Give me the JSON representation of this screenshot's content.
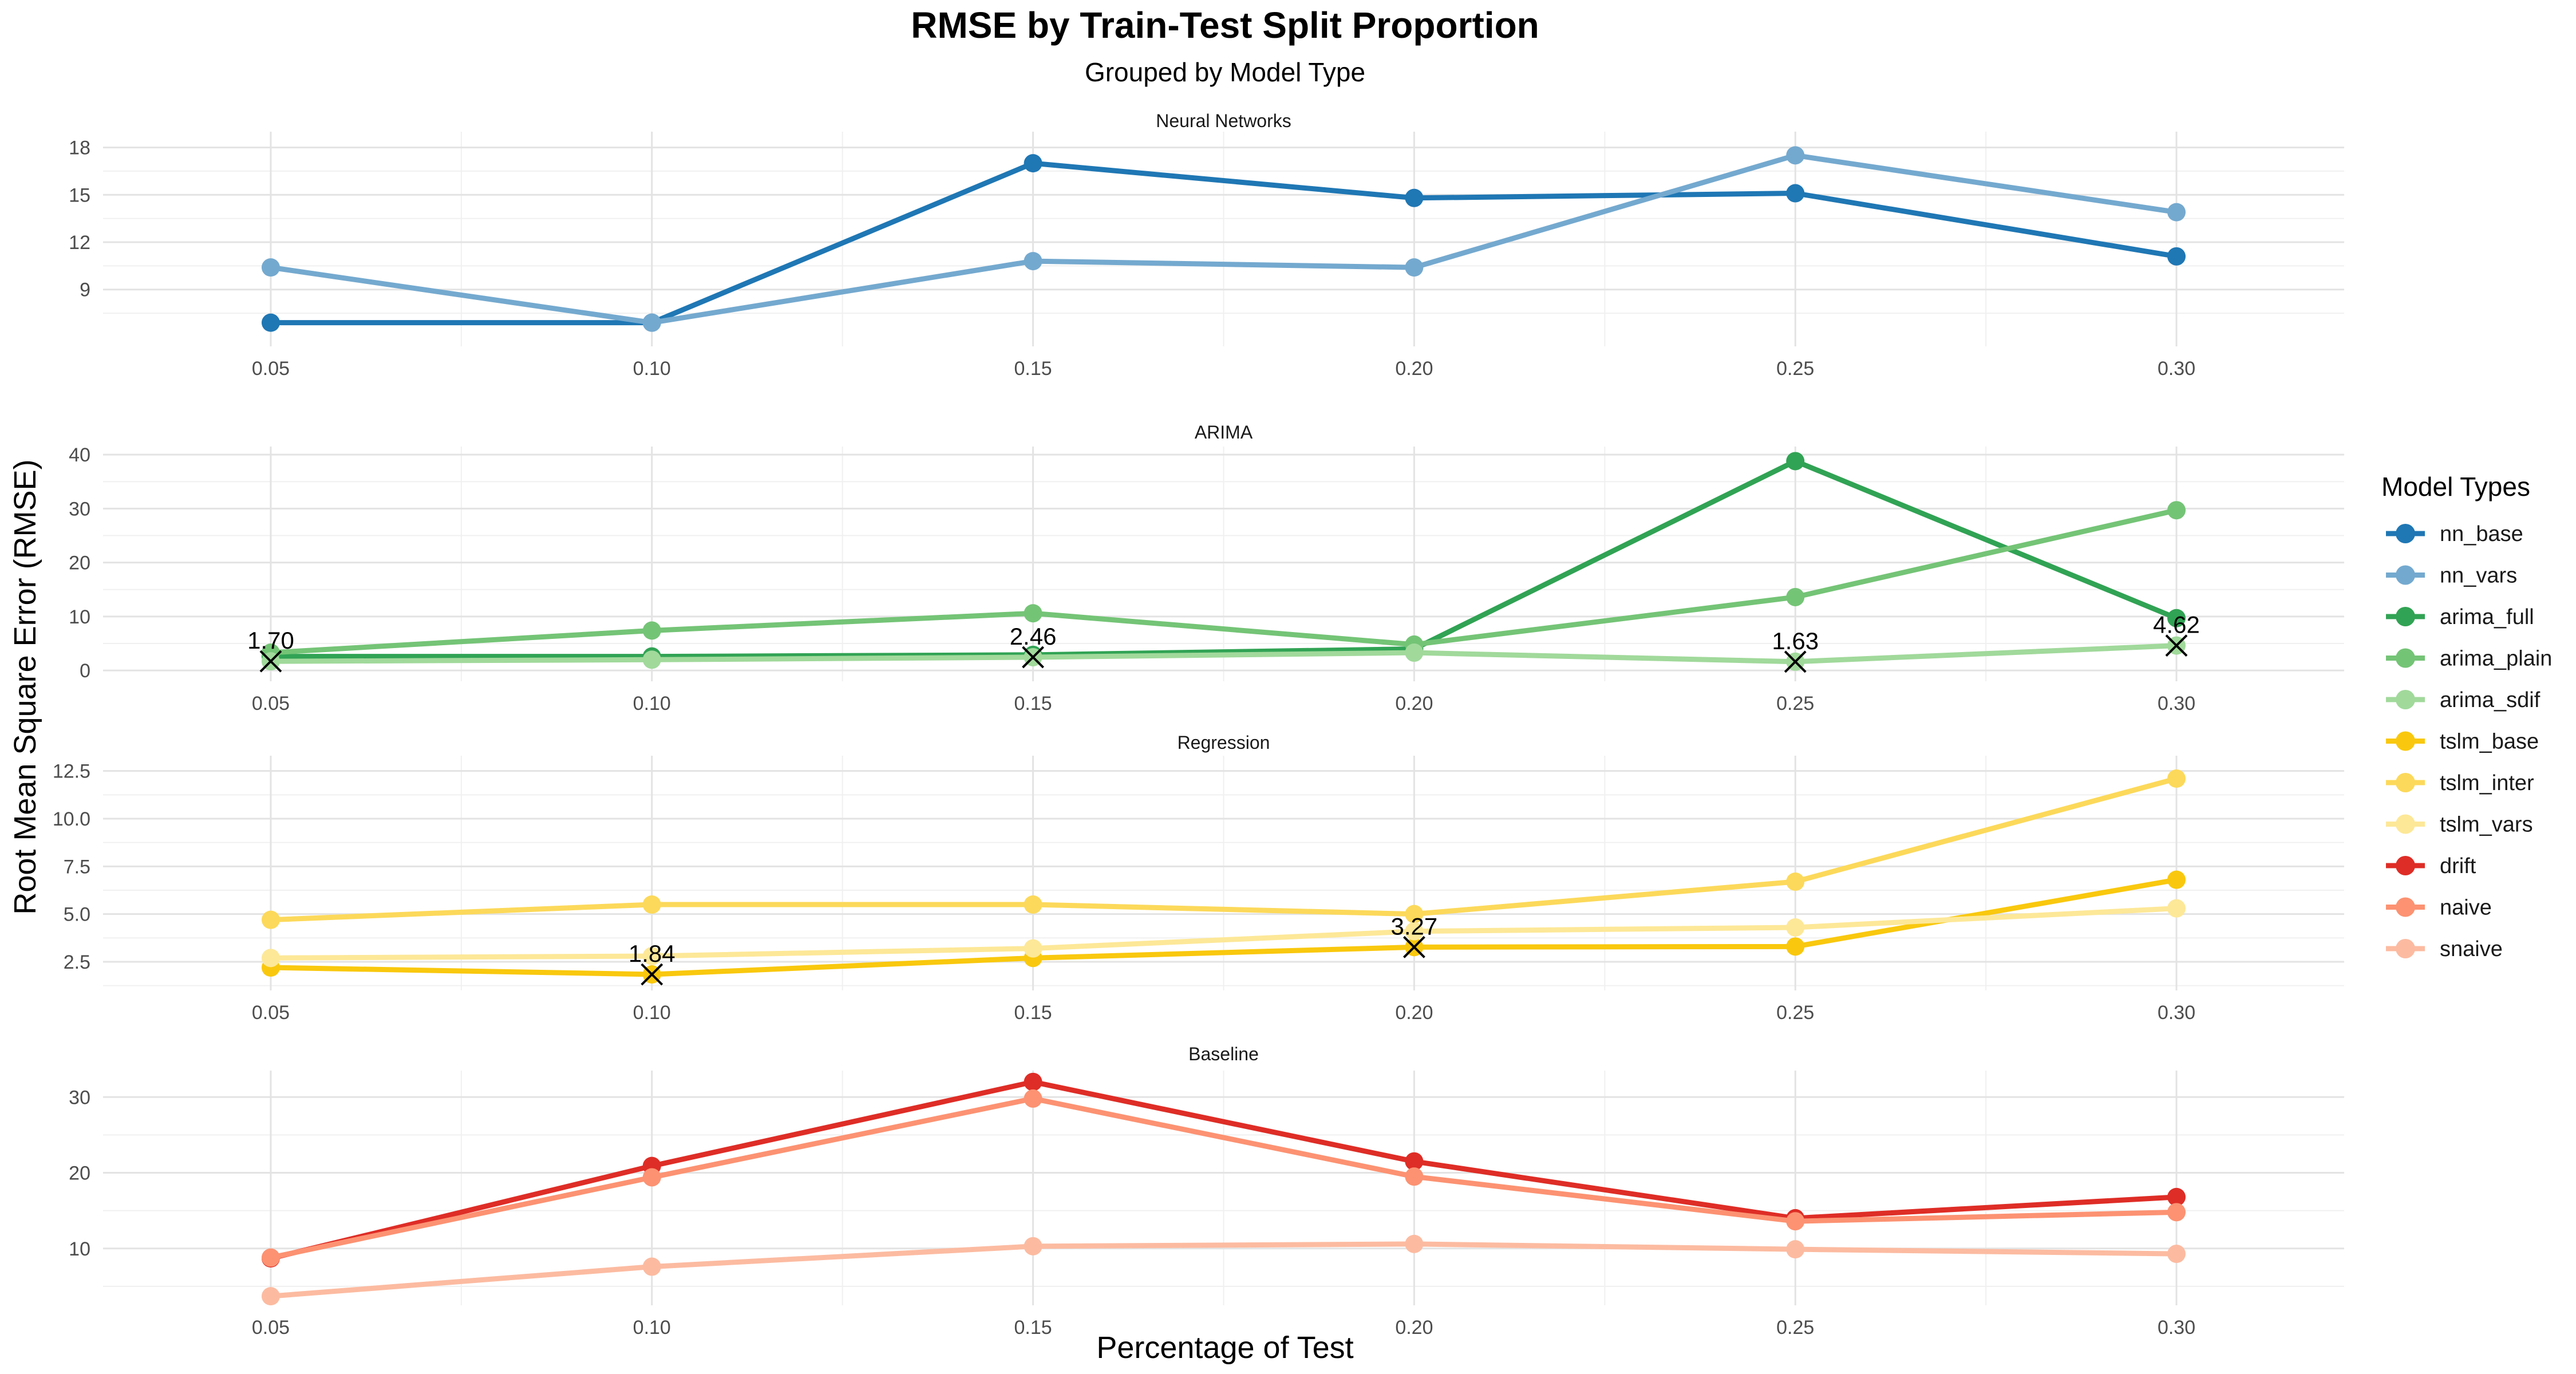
{
  "title": "RMSE by Train-Test Split Proportion",
  "subtitle": "Grouped by Model Type",
  "xlabel": "Percentage of Test",
  "ylabel": "Root Mean Square Error (RMSE)",
  "legend": {
    "title": "Model Types",
    "placement": "right",
    "items": [
      {
        "name": "nn_base",
        "color": "#1f77b4"
      },
      {
        "name": "nn_vars",
        "color": "#74a9cf"
      },
      {
        "name": "arima_full",
        "color": "#31a354"
      },
      {
        "name": "arima_plain",
        "color": "#74c476"
      },
      {
        "name": "arima_sdif",
        "color": "#a1d99b"
      },
      {
        "name": "tslm_base",
        "color": "#f9c80e"
      },
      {
        "name": "tslm_inter",
        "color": "#fcd95a"
      },
      {
        "name": "tslm_vars",
        "color": "#fde898"
      },
      {
        "name": "drift",
        "color": "#de2d26"
      },
      {
        "name": "naive",
        "color": "#fc9272"
      },
      {
        "name": "snaive",
        "color": "#fcbba1"
      }
    ]
  },
  "chart_data": {
    "type": "line",
    "x": [
      0.05,
      0.1,
      0.15,
      0.2,
      0.25,
      0.3
    ],
    "x_tick_labels": [
      "0.05",
      "0.10",
      "0.15",
      "0.20",
      "0.25",
      "0.30"
    ],
    "xlim": [
      0.028,
      0.322
    ],
    "grid": true,
    "panels": [
      {
        "title": "Neural Networks",
        "ylim": [
          5.4,
          19.0
        ],
        "y_ticks": [
          9,
          12,
          15,
          18
        ],
        "y_tick_labels": [
          "9",
          "12",
          "15",
          "18"
        ],
        "series": [
          {
            "name": "nn_base",
            "color": "#1f77b4",
            "values": [
              6.9,
              6.9,
              17.0,
              14.8,
              15.1,
              11.1
            ]
          },
          {
            "name": "nn_vars",
            "color": "#74a9cf",
            "values": [
              10.4,
              6.9,
              10.8,
              10.4,
              17.5,
              13.9
            ]
          }
        ],
        "markers": []
      },
      {
        "title": "ARIMA",
        "ylim": [
          -2.0,
          41.5
        ],
        "y_ticks": [
          0,
          10,
          20,
          30,
          40
        ],
        "y_tick_labels": [
          "0",
          "10",
          "20",
          "30",
          "40"
        ],
        "series": [
          {
            "name": "arima_full",
            "color": "#31a354",
            "values": [
              2.6,
              2.6,
              2.9,
              4.0,
              38.8,
              9.7
            ]
          },
          {
            "name": "arima_plain",
            "color": "#74c476",
            "values": [
              3.3,
              7.4,
              10.6,
              4.8,
              13.6,
              29.7
            ]
          },
          {
            "name": "arima_sdif",
            "color": "#a1d99b",
            "values": [
              1.7,
              2.0,
              2.46,
              3.3,
              1.63,
              4.62
            ]
          }
        ],
        "markers": [
          {
            "x": 0.05,
            "y": 1.7,
            "label": "1.70"
          },
          {
            "x": 0.15,
            "y": 2.46,
            "label": "2.46"
          },
          {
            "x": 0.25,
            "y": 1.63,
            "label": "1.63"
          },
          {
            "x": 0.3,
            "y": 4.62,
            "label": "4.62"
          }
        ]
      },
      {
        "title": "Regression",
        "ylim": [
          1.0,
          13.3
        ],
        "y_ticks": [
          2.5,
          5.0,
          7.5,
          10.0,
          12.5
        ],
        "y_tick_labels": [
          "2.5",
          "5.0",
          "7.5",
          "10.0",
          "12.5"
        ],
        "series": [
          {
            "name": "tslm_base",
            "color": "#f9c80e",
            "values": [
              2.2,
              1.84,
              2.7,
              3.27,
              3.3,
              6.8
            ]
          },
          {
            "name": "tslm_inter",
            "color": "#fcd95a",
            "values": [
              4.7,
              5.5,
              5.5,
              5.0,
              6.7,
              12.1
            ]
          },
          {
            "name": "tslm_vars",
            "color": "#fde898",
            "values": [
              2.7,
              2.8,
              3.2,
              4.1,
              4.3,
              5.3
            ]
          }
        ],
        "markers": [
          {
            "x": 0.1,
            "y": 1.84,
            "label": "1.84"
          },
          {
            "x": 0.2,
            "y": 3.27,
            "label": "3.27"
          }
        ]
      },
      {
        "title": "Baseline",
        "ylim": [
          2.5,
          33.5
        ],
        "y_ticks": [
          10,
          20,
          30
        ],
        "y_tick_labels": [
          "10",
          "20",
          "30"
        ],
        "series": [
          {
            "name": "drift",
            "color": "#de2d26",
            "values": [
              8.7,
              20.9,
              32.0,
              21.5,
              14.0,
              16.8
            ]
          },
          {
            "name": "naive",
            "color": "#fc9272",
            "values": [
              8.8,
              19.4,
              29.8,
              19.5,
              13.6,
              14.8
            ]
          },
          {
            "name": "snaive",
            "color": "#fcbba1",
            "values": [
              3.7,
              7.6,
              10.3,
              10.6,
              9.9,
              9.3
            ]
          }
        ],
        "markers": []
      }
    ]
  }
}
